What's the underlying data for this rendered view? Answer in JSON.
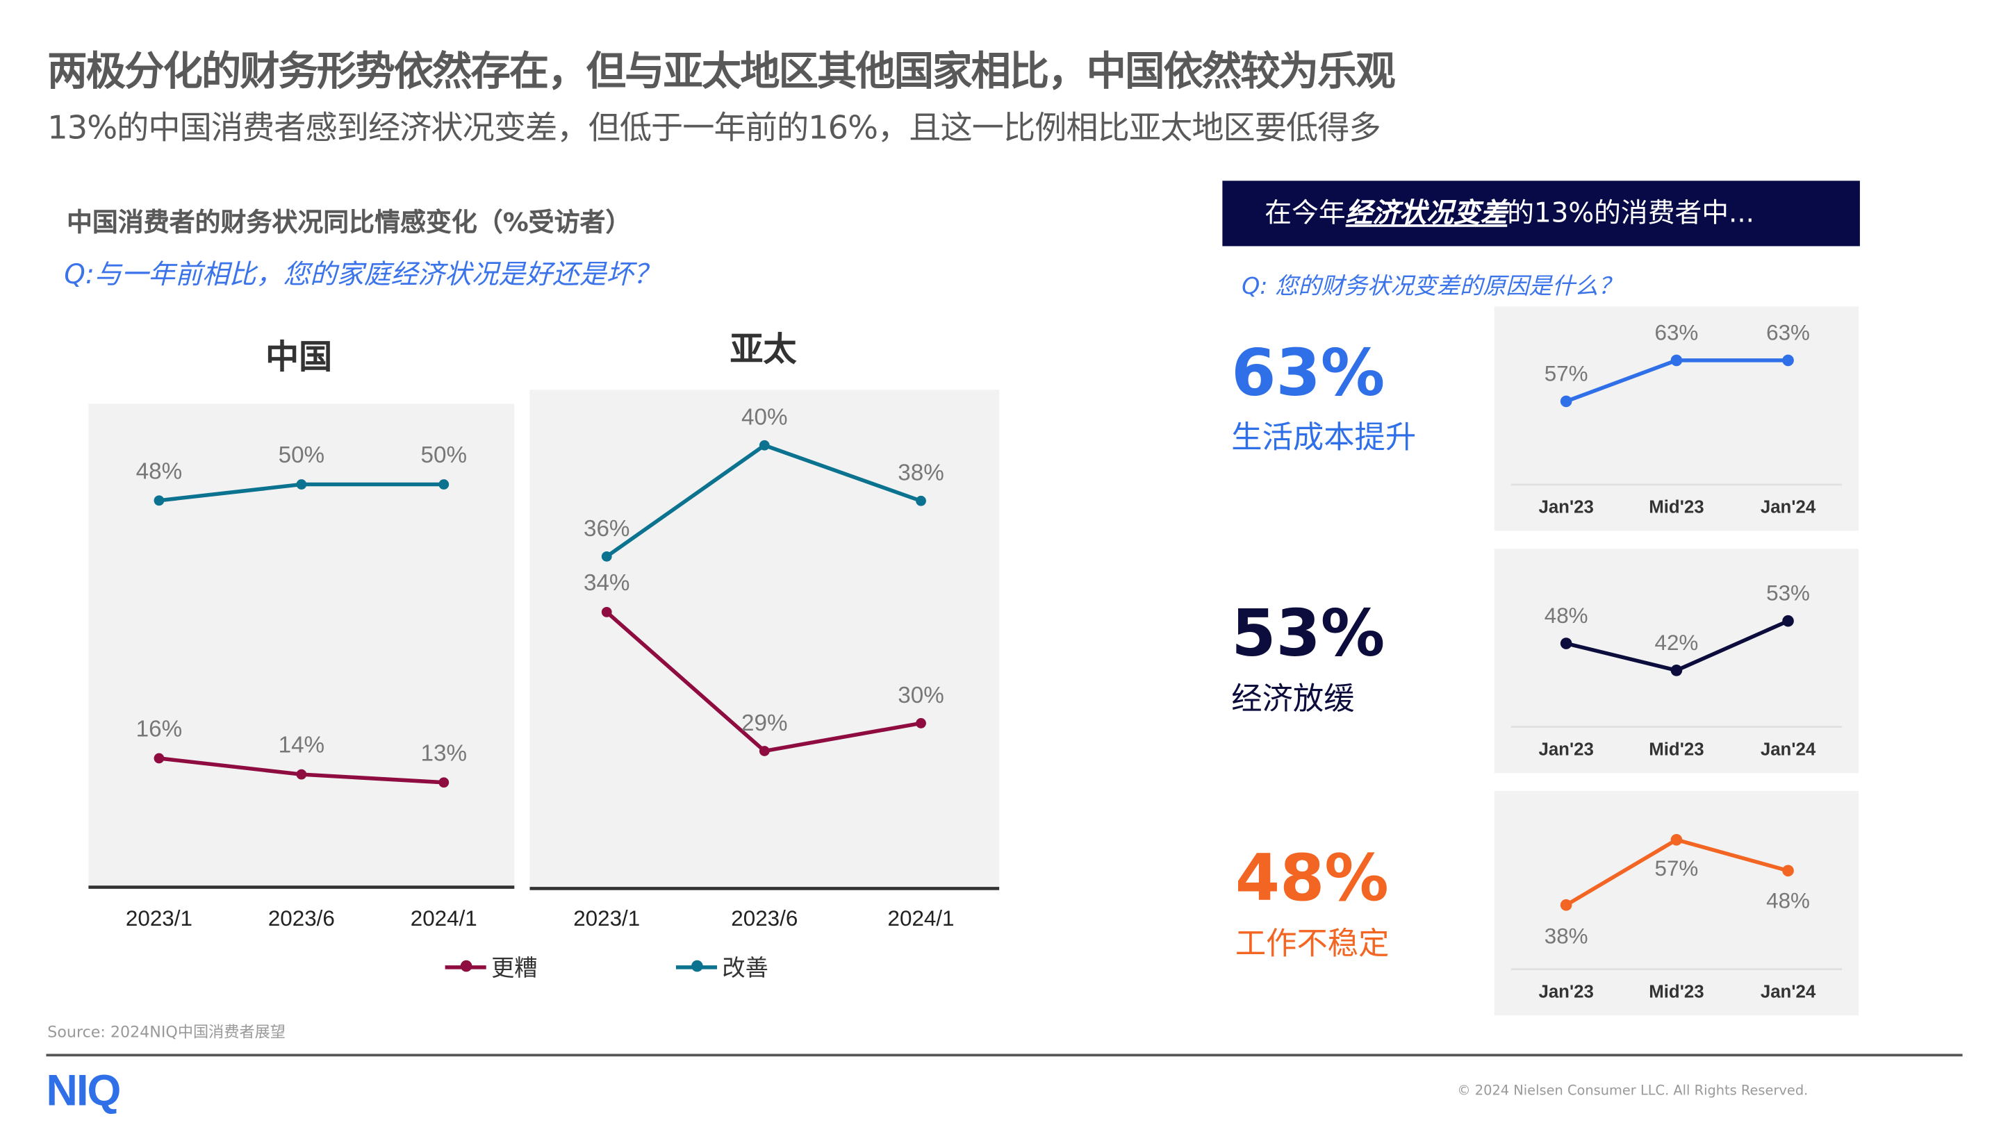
{
  "header": {
    "title": "两极分化的财务形势依然存在，但与亚太地区其他国家相比，中国依然较为乐观",
    "subtitle": "13%的中国消费者感到经济状况变差，但低于一年前的16%，且这一比例相比亚太地区要低得多"
  },
  "left": {
    "chart_title": "中国消费者的财务状况同比情感变化（%受访者）",
    "question": "Q:与一年前相比，您的家庭经济状况是好还是坏？",
    "legend": [
      {
        "label": "更糟",
        "color": "#8e0c3f"
      },
      {
        "label": "改善",
        "color": "#0b7290"
      }
    ]
  },
  "right": {
    "banner_prefix": "在今年",
    "banner_emphasis": "经济状况变差",
    "banner_suffix": "的13%的消费者中...",
    "question": "Q: 您的财务状况变差的原因是什么？",
    "reasons": [
      {
        "pct": "63%",
        "label": "生活成本提升",
        "color": "#2f6fe8"
      },
      {
        "pct": "53%",
        "label": "经济放缓",
        "color": "#0d0d3d"
      },
      {
        "pct": "48%",
        "label": "工作不稳定",
        "color": "#f26522"
      }
    ]
  },
  "chart_data": [
    {
      "type": "line",
      "title": "中国",
      "categories": [
        "2023/1",
        "2023/6",
        "2024/1"
      ],
      "ylim": [
        0,
        60
      ],
      "series": [
        {
          "name": "更糟",
          "values": [
            16,
            14,
            13
          ],
          "color": "#8e0c3f"
        },
        {
          "name": "改善",
          "values": [
            48,
            50,
            50
          ],
          "color": "#0b7290"
        }
      ]
    },
    {
      "type": "line",
      "title": "亚太",
      "categories": [
        "2023/1",
        "2023/6",
        "2024/1"
      ],
      "ylim": [
        24.1,
        42
      ],
      "series": [
        {
          "name": "更糟",
          "values": [
            34,
            29,
            30
          ],
          "color": "#8e0c3f"
        },
        {
          "name": "改善",
          "values": [
            36,
            40,
            38
          ],
          "color": "#0b7290"
        }
      ]
    },
    {
      "type": "line",
      "title": "生活成本提升",
      "categories": [
        "Jan'23",
        "Mid'23",
        "Jan'24"
      ],
      "ylim": [
        44.8,
        70.9
      ],
      "series": [
        {
          "name": "生活成本提升",
          "values": [
            57,
            63,
            63
          ],
          "color": "#2f6fe8"
        }
      ]
    },
    {
      "type": "line",
      "title": "经济放缓",
      "categories": [
        "Jan'23",
        "Mid'23",
        "Jan'24"
      ],
      "ylim": [
        29.4,
        69.1
      ],
      "series": [
        {
          "name": "经济放缓",
          "values": [
            48,
            42,
            53
          ],
          "color": "#0d0d3d"
        }
      ]
    },
    {
      "type": "line",
      "title": "工作不稳定",
      "categories": [
        "Jan'23",
        "Mid'23",
        "Jan'24"
      ],
      "ylim": [
        19.3,
        71.2
      ],
      "series": [
        {
          "name": "工作不稳定",
          "values": [
            38,
            57,
            48
          ],
          "color": "#f26522"
        }
      ]
    }
  ],
  "footer": {
    "source": "Source: 2024NIQ中国消费者展望",
    "logo": "NIQ",
    "copyright": "© 2024 Nielsen Consumer LLC. All Rights Reserved."
  }
}
